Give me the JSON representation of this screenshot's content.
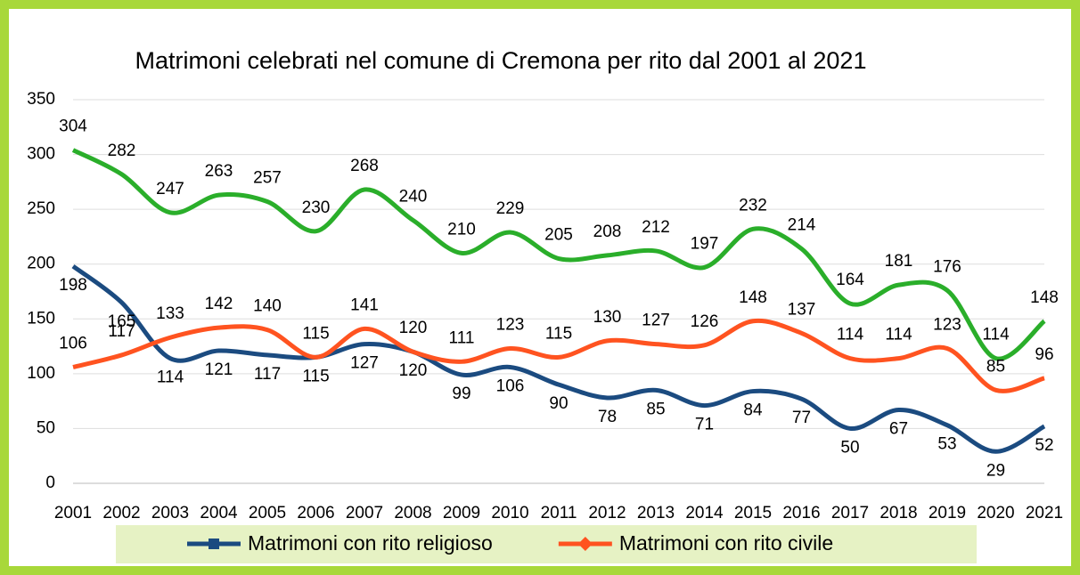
{
  "chart_data": {
    "type": "line",
    "title": "Matrimoni celebrati nel comune di Cremona per rito dal 2001 al 2021",
    "categories": [
      "2001",
      "2002",
      "2003",
      "2004",
      "2005",
      "2006",
      "2007",
      "2008",
      "2009",
      "2010",
      "2011",
      "2012",
      "2013",
      "2014",
      "2015",
      "2016",
      "2017",
      "2018",
      "2019",
      "2020",
      "2021"
    ],
    "series": [
      {
        "color": "#2aae2a",
        "values": [
          304,
          282,
          247,
          263,
          257,
          230,
          268,
          240,
          210,
          229,
          205,
          208,
          212,
          197,
          232,
          214,
          164,
          181,
          176,
          114,
          148
        ]
      },
      {
        "name": "Matrimoni con rito religioso",
        "color": "#1b4b80",
        "values": [
          198,
          165,
          114,
          121,
          117,
          115,
          127,
          120,
          99,
          106,
          90,
          78,
          85,
          71,
          84,
          77,
          50,
          67,
          53,
          29,
          52
        ]
      },
      {
        "name": "Matrimoni con rito civile",
        "color": "#ff5320",
        "values": [
          106,
          117,
          133,
          142,
          140,
          115,
          141,
          120,
          111,
          123,
          115,
          130,
          127,
          126,
          148,
          137,
          114,
          114,
          123,
          85,
          96
        ]
      }
    ],
    "ylim": [
      0,
      350
    ],
    "yticks": [
      0,
      50,
      100,
      150,
      200,
      250,
      300,
      350
    ],
    "grid": true,
    "legend": "bottom"
  }
}
